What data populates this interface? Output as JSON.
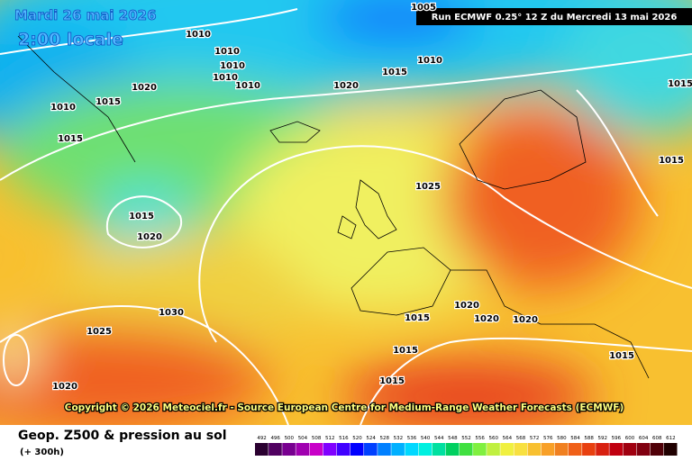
{
  "header": {
    "date": "Mardi 26 mai 2026",
    "time": "2:00 locale",
    "run": "Run ECMWF 0.25° 12 Z du Mercredi 13 mai 2026"
  },
  "copyright": "Copyright © 2026 Meteociel.fr - Source European Centre for Medium-Range Weather Forecasts (ECMWF)",
  "footer": {
    "title": "Geop. Z500 & pression au sol",
    "lead": "(+ 300h)"
  },
  "isobar_labels": [
    1005,
    1010,
    1010,
    1010,
    1010,
    1010,
    1015,
    1010,
    1020,
    1020,
    1015,
    1010,
    1015,
    1025,
    1015,
    1020,
    1030,
    1025,
    1015,
    1020,
    1020,
    1020,
    1015,
    1015,
    1015,
    1020,
    1015,
    1015
  ],
  "legend": {
    "values": [
      492,
      496,
      500,
      504,
      508,
      512,
      516,
      520,
      524,
      528,
      532,
      536,
      540,
      544,
      548,
      552,
      556,
      560,
      564,
      568,
      572,
      576,
      580,
      584,
      588,
      592,
      596,
      600,
      604,
      608,
      612
    ],
    "colors": [
      "#2a0030",
      "#500060",
      "#780090",
      "#a000b0",
      "#c800c8",
      "#8000ff",
      "#4000ff",
      "#0000ff",
      "#0040ff",
      "#0080ff",
      "#00b0ff",
      "#00d8ff",
      "#00f0e0",
      "#00e0a0",
      "#00d060",
      "#40e040",
      "#80f040",
      "#c0f040",
      "#f0f040",
      "#f8e040",
      "#f8c030",
      "#f8a028",
      "#f08020",
      "#f06018",
      "#e84010",
      "#d82010",
      "#c00010",
      "#a00010",
      "#800010",
      "#500008",
      "#200000"
    ]
  }
}
